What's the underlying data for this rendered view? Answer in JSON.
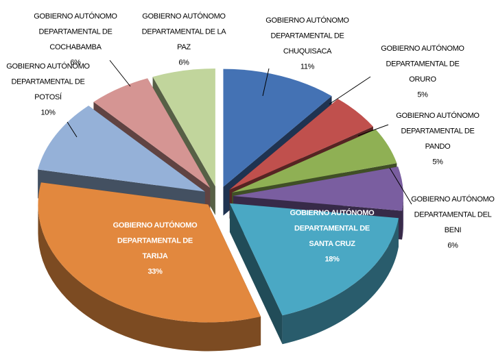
{
  "chart_data": {
    "type": "pie3d",
    "categories": [
      "GOBIERNO AUTÓNOMO\nDEPARTAMENTAL DE\nCHUQUISACA",
      "GOBIERNO AUTÓNOMO\nDEPARTAMENTAL DE\nORURO",
      "GOBIERNO AUTÓNOMO\nDEPARTAMENTAL DE\nPANDO",
      "GOBIERNO AUTÓNOMO\nDEPARTAMENTAL DEL\nBENI",
      "GOBIERNO AUTÓNOMO\nDEPARTAMENTAL DE\nSANTA CRUZ",
      "GOBIERNO AUTÓNOMO\nDEPARTAMENTAL DE\nTARIJA",
      "GOBIERNO AUTÓNOMO\nDEPARTAMENTAL DE\nPOTOSÍ",
      "GOBIERNO AUTÓNOMO\nDEPARTAMENTAL DE\nCOCHABAMBA",
      "GOBIERNO AUTÓNOMO\nDEPARTAMENTAL DE LA\nPAZ"
    ],
    "values": [
      11,
      5,
      5,
      6,
      18,
      33,
      10,
      6,
      6
    ],
    "value_labels": [
      "11%",
      "5%",
      "5%",
      "6%",
      "18%",
      "33%",
      "10%",
      "6%",
      "6%"
    ],
    "colors": [
      "#4472b4",
      "#c0504d",
      "#8fb054",
      "#7a5ea0",
      "#4aa8c4",
      "#e2883e",
      "#95b1d8",
      "#d59593",
      "#c1d59c"
    ]
  }
}
